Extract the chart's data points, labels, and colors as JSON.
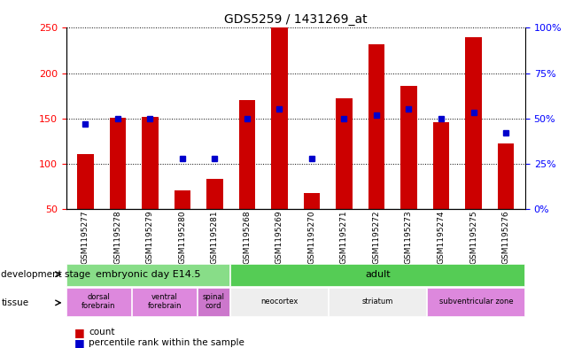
{
  "title": "GDS5259 / 1431269_at",
  "samples": [
    "GSM1195277",
    "GSM1195278",
    "GSM1195279",
    "GSM1195280",
    "GSM1195281",
    "GSM1195268",
    "GSM1195269",
    "GSM1195270",
    "GSM1195271",
    "GSM1195272",
    "GSM1195273",
    "GSM1195274",
    "GSM1195275",
    "GSM1195276"
  ],
  "count": [
    110,
    151,
    152,
    70,
    83,
    170,
    250,
    67,
    172,
    232,
    186,
    146,
    240,
    122
  ],
  "percentile": [
    47,
    50,
    50,
    28,
    28,
    50,
    55,
    28,
    50,
    52,
    55,
    50,
    53,
    42
  ],
  "ymin": 50,
  "ymax": 250,
  "yticks": [
    50,
    100,
    150,
    200,
    250
  ],
  "right_yticks": [
    0,
    25,
    50,
    75,
    100
  ],
  "right_yticklabels": [
    "0%",
    "25%",
    "50%",
    "75%",
    "100%"
  ],
  "bar_color": "#cc0000",
  "dot_color": "#0000cc",
  "dev_stages": [
    {
      "label": "embryonic day E14.5",
      "start": 0,
      "end": 5,
      "color": "#88dd88"
    },
    {
      "label": "adult",
      "start": 5,
      "end": 14,
      "color": "#55cc55"
    }
  ],
  "tissues": [
    {
      "label": "dorsal\nforebrain",
      "start": 0,
      "end": 2,
      "color": "#dd88dd"
    },
    {
      "label": "ventral\nforebrain",
      "start": 2,
      "end": 4,
      "color": "#dd88dd"
    },
    {
      "label": "spinal\ncord",
      "start": 4,
      "end": 5,
      "color": "#cc77cc"
    },
    {
      "label": "neocortex",
      "start": 5,
      "end": 8,
      "color": "#eeeeee"
    },
    {
      "label": "striatum",
      "start": 8,
      "end": 11,
      "color": "#eeeeee"
    },
    {
      "label": "subventricular zone",
      "start": 11,
      "end": 14,
      "color": "#dd88dd"
    }
  ]
}
